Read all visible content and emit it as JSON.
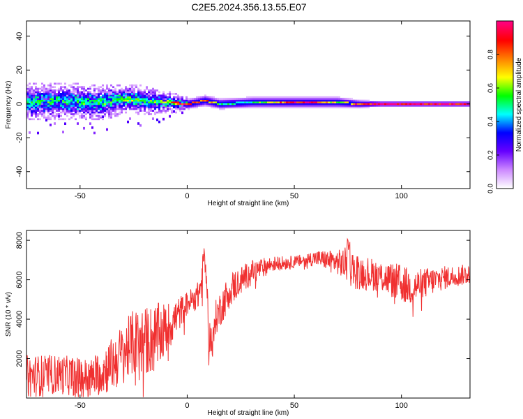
{
  "title": "C2E5.2024.356.13.55.E07",
  "colors": {
    "snr_line": "#f03030",
    "spectrum_peak": "#e8203a",
    "axis": "#000000"
  },
  "chart_data": [
    {
      "type": "heatmap",
      "xlabel": "Height of straight line (km)",
      "ylabel": "Frequency (Hz)",
      "xlim": [
        -75,
        132
      ],
      "ylim": [
        -50,
        49
      ],
      "xticks": [
        -50,
        0,
        50,
        100
      ],
      "yticks": [
        -40,
        -20,
        0,
        20,
        40
      ],
      "colorbar": {
        "label": "Normalized spectral amplitude",
        "range": [
          0.0,
          1.0
        ],
        "ticks": [
          0.0,
          0.2,
          0.4,
          0.6,
          0.8
        ],
        "tick_labels": [
          "0.0",
          "0.2",
          "0.4",
          "0.6",
          "0.8"
        ],
        "colormap": [
          "#ffffff",
          "#cc88ff",
          "#6600ff",
          "#0000ff",
          "#00ffff",
          "#00ff00",
          "#ffff00",
          "#ff8000",
          "#ff0000",
          "#ff0080"
        ]
      },
      "ridge": {
        "x": [
          -75,
          -60,
          -50,
          -40,
          -30,
          -20,
          -10,
          0,
          8,
          15,
          30,
          50,
          60,
          70,
          80,
          90,
          100,
          110,
          120,
          132
        ],
        "center_hz": [
          1,
          2,
          1,
          1,
          3,
          2,
          1,
          0,
          2,
          0,
          1,
          1,
          1,
          1,
          0,
          0,
          0,
          0,
          0,
          0
        ],
        "spread_hz": [
          5,
          5,
          5,
          5,
          4,
          4,
          3,
          2,
          2,
          2,
          2,
          2,
          2,
          2,
          1.5,
          1,
          1,
          1,
          1,
          1
        ],
        "peak_amplitude": [
          0.45,
          0.45,
          0.45,
          0.45,
          0.5,
          0.5,
          0.6,
          0.9,
          0.85,
          0.5,
          0.5,
          0.9,
          0.9,
          0.6,
          0.9,
          0.95,
          0.95,
          0.95,
          0.95,
          0.95
        ]
      }
    },
    {
      "type": "line",
      "xlabel": "Height of straight line (km)",
      "ylabel": "SNR (10 * v/v)",
      "xlim": [
        -75,
        132
      ],
      "ylim": [
        0,
        8500
      ],
      "xticks": [
        -50,
        0,
        50,
        100
      ],
      "yticks": [
        2000,
        4000,
        6000,
        8000
      ],
      "envelope": {
        "x": [
          -75,
          -60,
          -45,
          -35,
          -25,
          -15,
          -8,
          0,
          5,
          8,
          10,
          12,
          13,
          20,
          30,
          40,
          50,
          60,
          70,
          75,
          80,
          90,
          100,
          105,
          110,
          120,
          132
        ],
        "mean": [
          1100,
          1200,
          1000,
          1700,
          2800,
          3000,
          3700,
          4800,
          5200,
          6200,
          3500,
          2500,
          4000,
          5500,
          6400,
          6800,
          6900,
          7100,
          6900,
          6700,
          6400,
          6200,
          5800,
          5600,
          5800,
          6100,
          6300
        ],
        "amp": [
          1100,
          1000,
          1000,
          1400,
          1700,
          1800,
          1200,
          600,
          700,
          1600,
          1200,
          1000,
          900,
          900,
          600,
          400,
          300,
          400,
          600,
          1000,
          900,
          800,
          1000,
          900,
          800,
          600,
          500
        ]
      }
    }
  ]
}
